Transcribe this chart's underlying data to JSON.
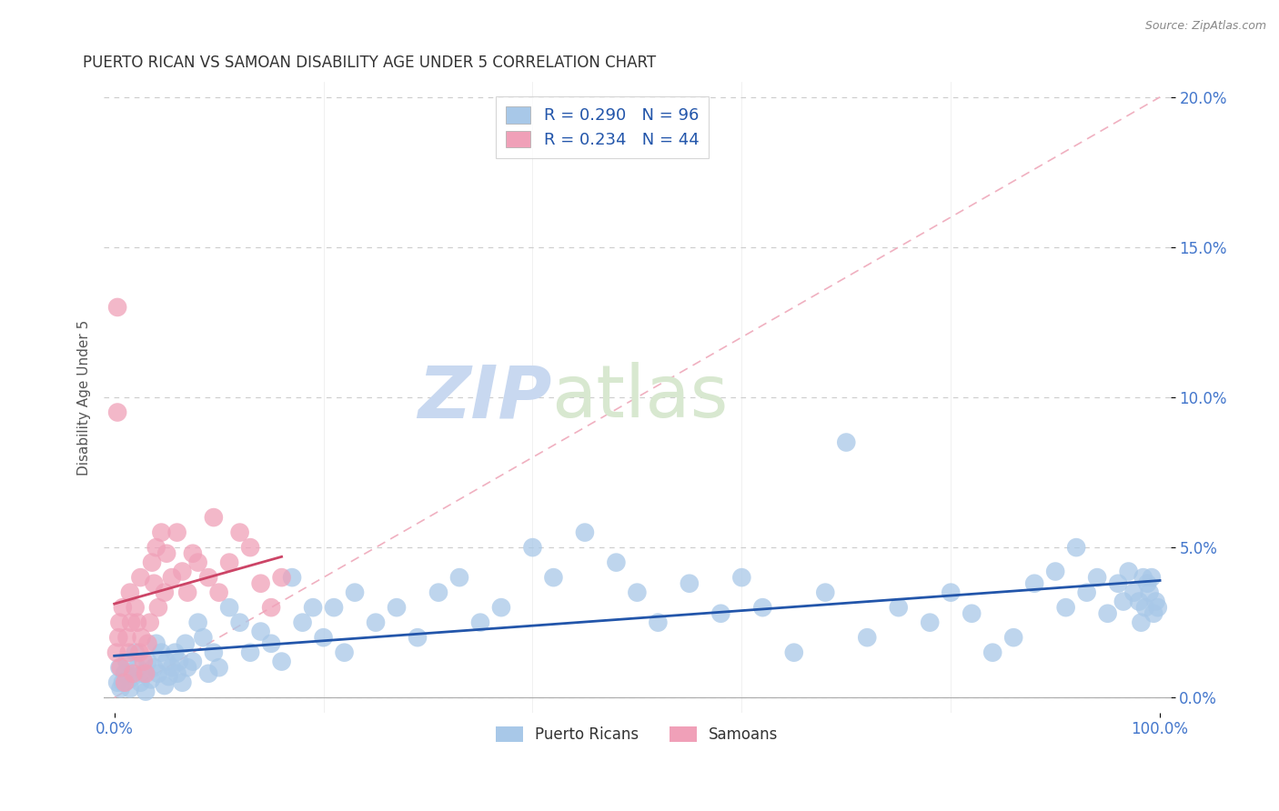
{
  "title": "PUERTO RICAN VS SAMOAN DISABILITY AGE UNDER 5 CORRELATION CHART",
  "source": "Source: ZipAtlas.com",
  "ylabel_label": "Disability Age Under 5",
  "legend_labels": [
    "Puerto Ricans",
    "Samoans"
  ],
  "R_blue": 0.29,
  "N_blue": 96,
  "R_pink": 0.234,
  "N_pink": 44,
  "blue_color": "#a8c8e8",
  "pink_color": "#f0a0b8",
  "blue_line_color": "#2255aa",
  "pink_line_color": "#cc4466",
  "title_color": "#333333",
  "axis_label_color": "#4477cc",
  "watermark_zip_color": "#c8d8f0",
  "watermark_atlas_color": "#d8e8d0",
  "grid_color": "#cccccc",
  "diagonal_color": "#f0b0c0",
  "source_color": "#888888",
  "xlim": [
    0.0,
    1.0
  ],
  "ylim": [
    0.0,
    0.2
  ],
  "xtick_positions": [
    0.0,
    1.0
  ],
  "xtick_labels": [
    "0.0%",
    "100.0%"
  ],
  "ytick_positions": [
    0.0,
    0.05,
    0.1,
    0.15,
    0.2
  ],
  "ytick_labels": [
    "0.0%",
    "5.0%",
    "10.0%",
    "15.0%",
    "20.0%"
  ],
  "blue_x": [
    0.005,
    0.008,
    0.01,
    0.012,
    0.015,
    0.018,
    0.02,
    0.022,
    0.025,
    0.028,
    0.03,
    0.032,
    0.035,
    0.038,
    0.04,
    0.042,
    0.045,
    0.048,
    0.05,
    0.052,
    0.055,
    0.058,
    0.06,
    0.062,
    0.065,
    0.068,
    0.07,
    0.075,
    0.08,
    0.085,
    0.09,
    0.095,
    0.1,
    0.11,
    0.12,
    0.13,
    0.14,
    0.15,
    0.16,
    0.17,
    0.18,
    0.19,
    0.2,
    0.21,
    0.22,
    0.23,
    0.25,
    0.27,
    0.29,
    0.31,
    0.33,
    0.35,
    0.37,
    0.4,
    0.42,
    0.45,
    0.48,
    0.5,
    0.52,
    0.55,
    0.58,
    0.6,
    0.62,
    0.65,
    0.68,
    0.7,
    0.72,
    0.75,
    0.78,
    0.8,
    0.82,
    0.84,
    0.86,
    0.88,
    0.9,
    0.91,
    0.92,
    0.93,
    0.94,
    0.95,
    0.96,
    0.965,
    0.97,
    0.975,
    0.98,
    0.982,
    0.984,
    0.986,
    0.988,
    0.99,
    0.992,
    0.994,
    0.996,
    0.998,
    0.003,
    0.006
  ],
  "blue_y": [
    0.01,
    0.005,
    0.008,
    0.012,
    0.003,
    0.007,
    0.015,
    0.01,
    0.005,
    0.008,
    0.002,
    0.012,
    0.006,
    0.01,
    0.018,
    0.008,
    0.015,
    0.004,
    0.012,
    0.007,
    0.01,
    0.015,
    0.008,
    0.012,
    0.005,
    0.018,
    0.01,
    0.012,
    0.025,
    0.02,
    0.008,
    0.015,
    0.01,
    0.03,
    0.025,
    0.015,
    0.022,
    0.018,
    0.012,
    0.04,
    0.025,
    0.03,
    0.02,
    0.03,
    0.015,
    0.035,
    0.025,
    0.03,
    0.02,
    0.035,
    0.04,
    0.025,
    0.03,
    0.05,
    0.04,
    0.055,
    0.045,
    0.035,
    0.025,
    0.038,
    0.028,
    0.04,
    0.03,
    0.015,
    0.035,
    0.085,
    0.02,
    0.03,
    0.025,
    0.035,
    0.028,
    0.015,
    0.02,
    0.038,
    0.042,
    0.03,
    0.05,
    0.035,
    0.04,
    0.028,
    0.038,
    0.032,
    0.042,
    0.035,
    0.032,
    0.025,
    0.04,
    0.03,
    0.038,
    0.035,
    0.04,
    0.028,
    0.032,
    0.03,
    0.005,
    0.003
  ],
  "pink_x": [
    0.002,
    0.004,
    0.005,
    0.006,
    0.008,
    0.01,
    0.012,
    0.014,
    0.015,
    0.016,
    0.018,
    0.02,
    0.022,
    0.024,
    0.025,
    0.026,
    0.028,
    0.03,
    0.032,
    0.034,
    0.036,
    0.038,
    0.04,
    0.042,
    0.045,
    0.048,
    0.05,
    0.055,
    0.06,
    0.065,
    0.07,
    0.075,
    0.08,
    0.09,
    0.095,
    0.1,
    0.11,
    0.12,
    0.13,
    0.003,
    0.003,
    0.14,
    0.15,
    0.16
  ],
  "pink_y": [
    0.015,
    0.02,
    0.025,
    0.01,
    0.03,
    0.005,
    0.02,
    0.015,
    0.035,
    0.025,
    0.008,
    0.03,
    0.025,
    0.015,
    0.04,
    0.02,
    0.012,
    0.008,
    0.018,
    0.025,
    0.045,
    0.038,
    0.05,
    0.03,
    0.055,
    0.035,
    0.048,
    0.04,
    0.055,
    0.042,
    0.035,
    0.048,
    0.045,
    0.04,
    0.06,
    0.035,
    0.045,
    0.055,
    0.05,
    0.13,
    0.095,
    0.038,
    0.03,
    0.04
  ]
}
